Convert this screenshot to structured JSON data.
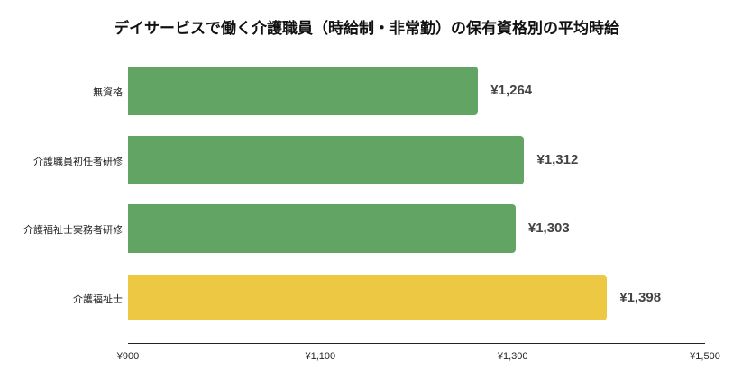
{
  "chart_data": {
    "type": "bar",
    "orientation": "horizontal",
    "title": "デイサービスで働く介護職員（時給制・非常勤）の保有資格別の平均時給",
    "categories": [
      "無資格",
      "介護職員初任者研修",
      "介護福祉士実務者研修",
      "介護福祉士"
    ],
    "values": [
      1264,
      1312,
      1303,
      1398
    ],
    "value_labels": [
      "¥1,264",
      "¥1,312",
      "¥1,303",
      "¥1,398"
    ],
    "colors": [
      "#62a463",
      "#62a463",
      "#62a463",
      "#ecc843"
    ],
    "xlabel": "",
    "ylabel": "",
    "xlim": [
      900,
      1500
    ],
    "x_ticks": [
      900,
      1100,
      1300,
      1500
    ],
    "x_tick_labels": [
      "¥900",
      "¥1,100",
      "¥1,300",
      "¥1,500"
    ],
    "grid": false,
    "legend": null
  }
}
